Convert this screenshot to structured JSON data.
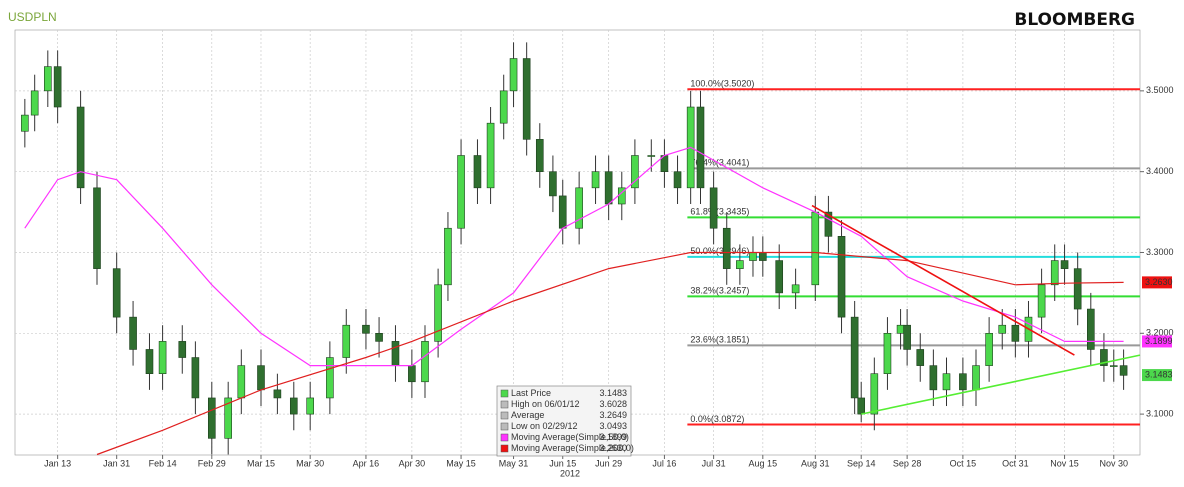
{
  "chart_data": {
    "type": "candlestick",
    "title": "USDPLN",
    "source": "BLOOMBERG",
    "year_label": "2012",
    "x": [
      3,
      6,
      10,
      13,
      20,
      25,
      31,
      36,
      41,
      45,
      51,
      55,
      60,
      65,
      69,
      75,
      80,
      85,
      90,
      96,
      101,
      107,
      111,
      116,
      121,
      125,
      129,
      132,
      136,
      141,
      145,
      149,
      152,
      156,
      160,
      164,
      167,
      172,
      177,
      181,
      185,
      189,
      194,
      198,
      202,
      206,
      209,
      213,
      217,
      221,
      225,
      228,
      233,
      238,
      244,
      248,
      252,
      256,
      258,
      262,
      266,
      270,
      272,
      276,
      280,
      284,
      289,
      293,
      297,
      301,
      305,
      309,
      313,
      317,
      320,
      324,
      328,
      332,
      335,
      338
    ],
    "open": [
      3.45,
      3.47,
      3.5,
      3.53,
      3.48,
      3.38,
      3.28,
      3.22,
      3.18,
      3.15,
      3.19,
      3.17,
      3.12,
      3.07,
      3.12,
      3.16,
      3.13,
      3.12,
      3.1,
      3.12,
      3.17,
      3.21,
      3.2,
      3.19,
      3.16,
      3.14,
      3.19,
      3.26,
      3.33,
      3.42,
      3.38,
      3.46,
      3.5,
      3.54,
      3.44,
      3.4,
      3.37,
      3.33,
      3.38,
      3.4,
      3.36,
      3.38,
      3.42,
      3.42,
      3.4,
      3.38,
      3.48,
      3.38,
      3.33,
      3.28,
      3.29,
      3.3,
      3.29,
      3.25,
      3.26,
      3.35,
      3.32,
      3.22,
      3.12,
      3.1,
      3.15,
      3.2,
      3.21,
      3.18,
      3.16,
      3.13,
      3.15,
      3.13,
      3.16,
      3.2,
      3.21,
      3.19,
      3.22,
      3.26,
      3.29,
      3.28,
      3.23,
      3.18,
      3.16,
      3.16
    ],
    "high": [
      3.49,
      3.52,
      3.55,
      3.55,
      3.5,
      3.4,
      3.3,
      3.24,
      3.2,
      3.21,
      3.21,
      3.19,
      3.14,
      3.14,
      3.18,
      3.18,
      3.15,
      3.14,
      3.14,
      3.19,
      3.23,
      3.23,
      3.22,
      3.21,
      3.18,
      3.21,
      3.28,
      3.35,
      3.44,
      3.44,
      3.48,
      3.52,
      3.56,
      3.56,
      3.46,
      3.42,
      3.39,
      3.4,
      3.42,
      3.42,
      3.4,
      3.44,
      3.44,
      3.44,
      3.42,
      3.5,
      3.5,
      3.4,
      3.35,
      3.31,
      3.32,
      3.32,
      3.31,
      3.28,
      3.37,
      3.37,
      3.34,
      3.24,
      3.14,
      3.17,
      3.22,
      3.23,
      3.23,
      3.2,
      3.18,
      3.17,
      3.17,
      3.18,
      3.22,
      3.23,
      3.23,
      3.24,
      3.28,
      3.31,
      3.31,
      3.3,
      3.25,
      3.2,
      3.18,
      3.18
    ],
    "low": [
      3.43,
      3.45,
      3.48,
      3.46,
      3.36,
      3.26,
      3.2,
      3.16,
      3.13,
      3.13,
      3.15,
      3.1,
      3.05,
      3.05,
      3.1,
      3.11,
      3.1,
      3.08,
      3.08,
      3.1,
      3.15,
      3.18,
      3.17,
      3.14,
      3.12,
      3.12,
      3.17,
      3.24,
      3.31,
      3.36,
      3.36,
      3.44,
      3.48,
      3.42,
      3.38,
      3.35,
      3.31,
      3.31,
      3.36,
      3.34,
      3.34,
      3.36,
      3.4,
      3.38,
      3.36,
      3.36,
      3.36,
      3.31,
      3.26,
      3.26,
      3.27,
      3.27,
      3.23,
      3.23,
      3.24,
      3.3,
      3.2,
      3.1,
      3.09,
      3.08,
      3.13,
      3.18,
      3.16,
      3.14,
      3.11,
      3.11,
      3.11,
      3.11,
      3.14,
      3.18,
      3.17,
      3.17,
      3.2,
      3.24,
      3.26,
      3.21,
      3.16,
      3.14,
      3.14,
      3.13
    ],
    "close": [
      3.47,
      3.5,
      3.53,
      3.48,
      3.38,
      3.28,
      3.22,
      3.18,
      3.15,
      3.19,
      3.17,
      3.12,
      3.07,
      3.12,
      3.16,
      3.13,
      3.12,
      3.1,
      3.12,
      3.17,
      3.21,
      3.2,
      3.19,
      3.16,
      3.14,
      3.19,
      3.26,
      3.33,
      3.42,
      3.38,
      3.46,
      3.5,
      3.54,
      3.44,
      3.4,
      3.37,
      3.33,
      3.38,
      3.4,
      3.36,
      3.38,
      3.42,
      3.42,
      3.4,
      3.38,
      3.48,
      3.38,
      3.33,
      3.28,
      3.29,
      3.3,
      3.29,
      3.25,
      3.26,
      3.35,
      3.32,
      3.22,
      3.12,
      3.1,
      3.15,
      3.2,
      3.21,
      3.18,
      3.16,
      3.13,
      3.15,
      3.13,
      3.16,
      3.2,
      3.21,
      3.19,
      3.22,
      3.26,
      3.29,
      3.28,
      3.23,
      3.18,
      3.16,
      3.16,
      3.148
    ],
    "up_color": "#4cd84c",
    "down_color": "#2f6f2f",
    "xlim": [
      0,
      343
    ],
    "xticks": [
      {
        "value": 13,
        "label": "Jan 13"
      },
      {
        "value": 31,
        "label": "Jan 31"
      },
      {
        "value": 45,
        "label": "Feb 14"
      },
      {
        "value": 60,
        "label": "Feb 29"
      },
      {
        "value": 75,
        "label": "Mar 15"
      },
      {
        "value": 90,
        "label": "Mar 30"
      },
      {
        "value": 107,
        "label": "Apr 16"
      },
      {
        "value": 121,
        "label": "Apr 30"
      },
      {
        "value": 136,
        "label": "May 15"
      },
      {
        "value": 152,
        "label": "May 31"
      },
      {
        "value": 167,
        "label": "Jun 15"
      },
      {
        "value": 181,
        "label": "Jun 29"
      },
      {
        "value": 198,
        "label": "Jul 16"
      },
      {
        "value": 213,
        "label": "Jul 31"
      },
      {
        "value": 228,
        "label": "Aug 15"
      },
      {
        "value": 244,
        "label": "Aug 31"
      },
      {
        "value": 258,
        "label": "Sep 14"
      },
      {
        "value": 272,
        "label": "Sep 28"
      },
      {
        "value": 289,
        "label": "Oct 15"
      },
      {
        "value": 305,
        "label": "Oct 31"
      },
      {
        "value": 320,
        "label": "Nov 15"
      },
      {
        "value": 335,
        "label": "Nov 30"
      }
    ],
    "ylim": [
      3.0494,
      3.5753
    ],
    "yticks": [
      {
        "value": 3.1,
        "label": "3.1000"
      },
      {
        "value": 3.2,
        "label": "3.2000"
      },
      {
        "value": 3.3,
        "label": "3.3000"
      },
      {
        "value": 3.4,
        "label": "3.4000"
      },
      {
        "value": 3.5,
        "label": "3.5000"
      }
    ],
    "grid": true,
    "moving_averages": [
      {
        "color": "#ff33ff",
        "x": [
          3,
          13,
          20,
          31,
          45,
          60,
          75,
          90,
          107,
          121,
          136,
          152,
          167,
          181,
          198,
          206,
          228,
          244,
          258,
          272,
          289,
          305,
          320,
          338
        ],
        "values": [
          3.33,
          3.39,
          3.4,
          3.39,
          3.33,
          3.26,
          3.2,
          3.16,
          3.16,
          3.16,
          3.205,
          3.25,
          3.33,
          3.36,
          3.42,
          3.43,
          3.38,
          3.35,
          3.32,
          3.27,
          3.24,
          3.22,
          3.19,
          3.19
        ]
      },
      {
        "color": "#e02020",
        "x": [
          25,
          45,
          75,
          107,
          121,
          152,
          181,
          206,
          244,
          272,
          305,
          320,
          338
        ],
        "values": [
          3.05,
          3.08,
          3.13,
          3.17,
          3.19,
          3.24,
          3.28,
          3.3,
          3.3,
          3.29,
          3.26,
          3.262,
          3.263
        ]
      }
    ],
    "fibonacci_start": 205,
    "fibonacci": [
      {
        "value": 3.502,
        "label": "100.0%(3.5020)",
        "color": "#ff2020"
      },
      {
        "value": 3.4041,
        "label": "76.4%(3.4041)",
        "color": "#999999"
      },
      {
        "value": 3.3435,
        "label": "61.8%(3.3435)",
        "color": "#33dd33"
      },
      {
        "value": 3.2946,
        "label": "50.0%(3.2946)",
        "color": "#22dddd"
      },
      {
        "value": 3.2457,
        "label": "38.2%(3.2457)",
        "color": "#33dd33"
      },
      {
        "value": 3.1851,
        "label": "23.6%(3.1851)",
        "color": "#999999"
      },
      {
        "value": 3.0872,
        "label": "0.0%(3.0872)",
        "color": "#ff2020"
      }
    ],
    "trendlines": [
      {
        "color": "#ee1111",
        "x": [
          243,
          323
        ],
        "values": [
          3.358,
          3.173
        ]
      },
      {
        "color": "#55ee33",
        "x": [
          258,
          343
        ],
        "values": [
          3.1,
          3.173
        ]
      }
    ],
    "last_values": [
      {
        "value": 3.263,
        "label": "3.2630",
        "color": "#ee1111"
      },
      {
        "value": 3.1899,
        "label": "3.1899",
        "color": "#ff33ff"
      },
      {
        "value": 3.1483,
        "label": "3.1483",
        "color": "#4cd84c"
      }
    ],
    "legend": [
      {
        "name": "Last Price",
        "value": "3.1483",
        "color": "#4cd84c"
      },
      {
        "name": "High on 06/01/12",
        "value": "3.6028",
        "color": "#bbbbbb"
      },
      {
        "name": "Average",
        "value": "3.2649",
        "color": "#bbbbbb"
      },
      {
        "name": "Low on 02/29/12",
        "value": "3.0493",
        "color": "#bbbbbb"
      },
      {
        "name": "Moving Average(Simple,50,0)",
        "value": "3.1899",
        "color": "#ff33ff"
      },
      {
        "name": "Moving Average(Simple,200,0)",
        "value": "3.2630",
        "color": "#ee1111"
      }
    ]
  }
}
